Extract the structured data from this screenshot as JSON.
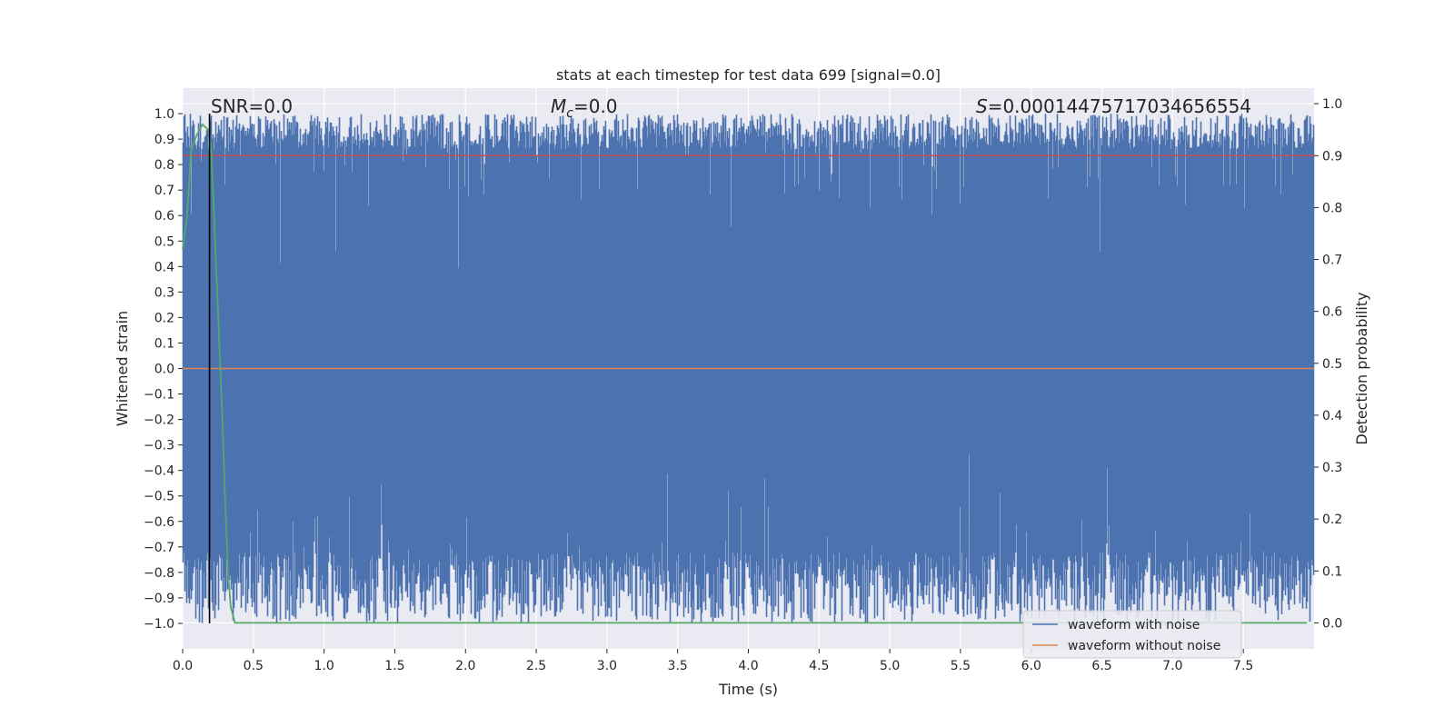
{
  "chart_data": {
    "type": "line",
    "title": "stats at each timestep for test data 699 [signal=0.0]",
    "xlabel": "Time (s)",
    "ylabel": "Whitened strain",
    "y2label": "Detection probability",
    "xlim": [
      0.0,
      8.0
    ],
    "ylim": [
      -1.1,
      1.1
    ],
    "y2lim": [
      -0.05,
      1.03
    ],
    "x_ticks": [
      0.0,
      0.5,
      1.0,
      1.5,
      2.0,
      2.5,
      3.0,
      3.5,
      4.0,
      4.5,
      5.0,
      5.5,
      6.0,
      6.5,
      7.0,
      7.5
    ],
    "x_tick_labels": [
      "0.0",
      "0.5",
      "1.0",
      "1.5",
      "2.0",
      "2.5",
      "3.0",
      "3.5",
      "4.0",
      "4.5",
      "5.0",
      "5.5",
      "6.0",
      "6.5",
      "7.0",
      "7.5"
    ],
    "y_ticks": [
      1.0,
      0.9,
      0.8,
      0.7,
      0.6,
      0.5,
      0.4,
      0.3,
      0.2,
      0.1,
      0.0,
      -0.1,
      -0.2,
      -0.3,
      -0.4,
      -0.5,
      -0.6,
      -0.7,
      -0.8,
      -0.9,
      -1.0
    ],
    "y_tick_labels": [
      "1.0",
      "0.9",
      "0.8",
      "0.7",
      "0.6",
      "0.5",
      "0.4",
      "0.3",
      "0.2",
      "0.1",
      "0.0",
      "−0.1",
      "−0.2",
      "−0.3",
      "−0.4",
      "−0.5",
      "−0.6",
      "−0.7",
      "−0.8",
      "−0.9",
      "−1.0"
    ],
    "y2_ticks": [
      1.0,
      0.9,
      0.8,
      0.7,
      0.6,
      0.5,
      0.4,
      0.3,
      0.2,
      0.1,
      0.0
    ],
    "y2_tick_labels": [
      "1.0",
      "0.9",
      "0.8",
      "0.7",
      "0.6",
      "0.5",
      "0.4",
      "0.3",
      "0.2",
      "0.1",
      "0.0"
    ],
    "grid": true,
    "annotations": {
      "snr": "SNR=0.0",
      "mc_symbol": "M",
      "mc_sub": "c",
      "mc_value": "=0.0",
      "s_symbol": "S",
      "s_value": "=0.00014475717034656554"
    },
    "series": [
      {
        "name": "waveform with noise",
        "axis": "left",
        "color": "#4c72b0",
        "style": "dense noise filling approximately -1.0 to 1.0 over 0.0 to 8.0 s"
      },
      {
        "name": "waveform without noise",
        "axis": "left",
        "color": "#dd8452",
        "x": [
          0.0,
          8.0
        ],
        "y": [
          0.0,
          0.0
        ]
      },
      {
        "name": "detection probability",
        "axis": "right",
        "color": "#55a868",
        "x": [
          0.0,
          0.03,
          0.06,
          0.1,
          0.14,
          0.18,
          0.2,
          0.22,
          0.25,
          0.28,
          0.3,
          0.32,
          0.34,
          0.37,
          0.4,
          1.0,
          2.0,
          3.0,
          4.0,
          5.0,
          6.0,
          7.0,
          7.95
        ],
        "y": [
          0.72,
          0.78,
          0.91,
          0.94,
          0.96,
          0.95,
          0.92,
          0.8,
          0.6,
          0.4,
          0.24,
          0.1,
          0.03,
          0.0,
          0.0,
          0.0,
          0.0,
          0.0,
          0.0,
          0.0,
          0.0,
          0.0,
          0.0
        ]
      },
      {
        "name": "threshold",
        "axis": "right",
        "color": "#c44e52",
        "x": [
          0.0,
          8.0
        ],
        "y": [
          0.9,
          0.9
        ]
      },
      {
        "name": "event marker",
        "axis": "left",
        "color": "#000000",
        "x": [
          0.19,
          0.19
        ],
        "y": [
          -1.0,
          1.0
        ]
      }
    ],
    "legend": {
      "position": "lower right",
      "entries": [
        "waveform with noise",
        "waveform without noise"
      ]
    }
  }
}
